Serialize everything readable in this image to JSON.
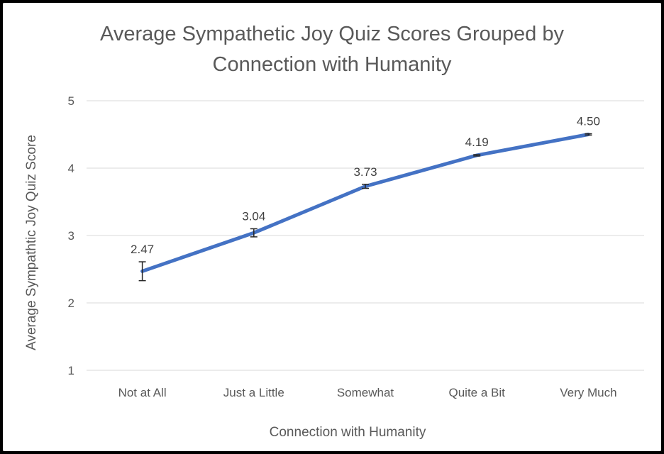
{
  "chart_data": {
    "type": "line",
    "title_lines": [
      "Average Sympathetic Joy Quiz Scores Grouped by",
      "Connection with Humanity"
    ],
    "xlabel": "Connection with Humanity",
    "ylabel": "Average Sympathtic Joy Quiz Score",
    "categories": [
      "Not at All",
      "Just a Little",
      "Somewhat",
      "Quite a Bit",
      "Very Much"
    ],
    "values": [
      2.47,
      3.04,
      3.73,
      4.19,
      4.5
    ],
    "data_labels": [
      "2.47",
      "3.04",
      "3.73",
      "4.19",
      "4.50"
    ],
    "error_bars": [
      0.14,
      0.06,
      0.03,
      0.01,
      0.01
    ],
    "ylim": [
      1,
      5
    ],
    "yticks": [
      1,
      2,
      3,
      4,
      5
    ],
    "grid": true,
    "legend": "none",
    "line_color": "#4472C4"
  }
}
